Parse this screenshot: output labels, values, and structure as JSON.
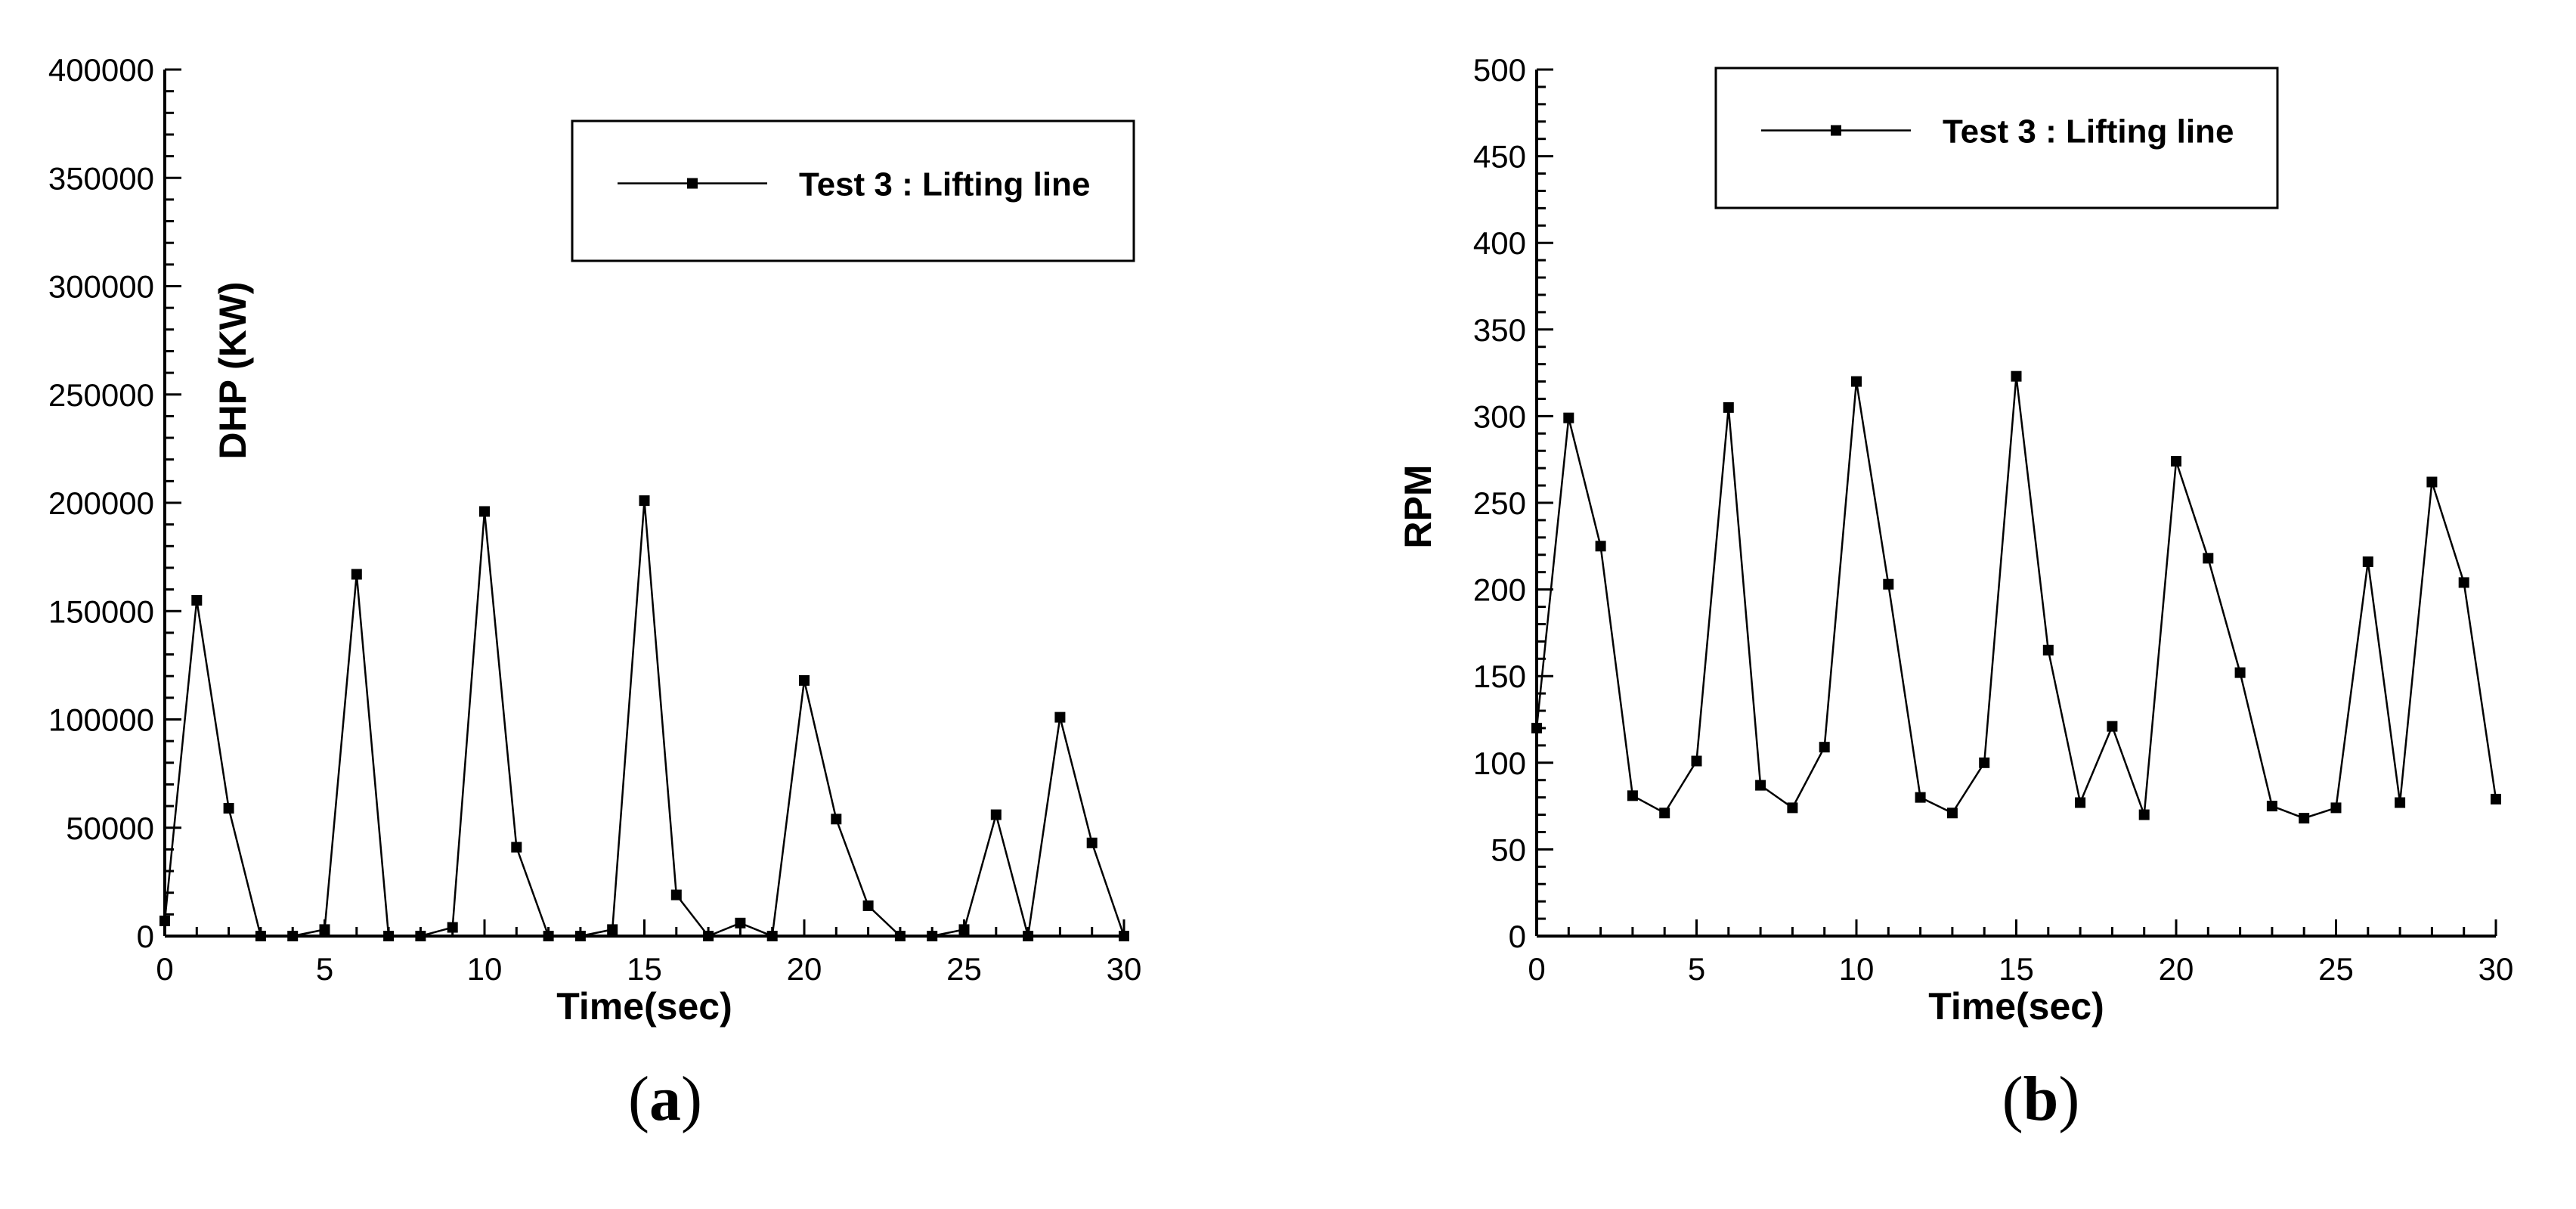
{
  "chart_data": [
    {
      "type": "line",
      "panel_label": "a",
      "xlabel": "Time(sec)",
      "ylabel": "DHP (KW)",
      "xlim": [
        0,
        30
      ],
      "ylim": [
        0,
        400000
      ],
      "xticks": [
        "0",
        "5",
        "10",
        "15",
        "20",
        "25",
        "30"
      ],
      "yticks": [
        "0",
        "50000",
        "100000",
        "150000",
        "200000",
        "250000",
        "300000",
        "350000",
        "400000"
      ],
      "grid": false,
      "legend_position": "top-right",
      "series": [
        {
          "name": "Test 3 : Lifting line",
          "marker": "square",
          "color": "#000000",
          "x": [
            0,
            1,
            2,
            3,
            4,
            5,
            6,
            7,
            8,
            9,
            10,
            11,
            12,
            13,
            14,
            15,
            16,
            17,
            18,
            19,
            20,
            21,
            22,
            23,
            24,
            25,
            26,
            27,
            28,
            29,
            30
          ],
          "y": [
            7000,
            155000,
            59000,
            0,
            0,
            3000,
            167000,
            0,
            0,
            4000,
            196000,
            41000,
            0,
            0,
            3000,
            201000,
            19000,
            0,
            6000,
            0,
            118000,
            54000,
            14000,
            0,
            0,
            3000,
            56000,
            0,
            101000,
            43000,
            0
          ]
        }
      ]
    },
    {
      "type": "line",
      "panel_label": "b",
      "xlabel": "Time(sec)",
      "ylabel": "RPM",
      "xlim": [
        0,
        30
      ],
      "ylim": [
        0,
        500
      ],
      "xticks": [
        "0",
        "5",
        "10",
        "15",
        "20",
        "25",
        "30"
      ],
      "yticks": [
        "0",
        "50",
        "100",
        "150",
        "200",
        "250",
        "300",
        "350",
        "400",
        "450",
        "500"
      ],
      "grid": false,
      "legend_position": "top-right",
      "series": [
        {
          "name": "Test 3 : Lifting line",
          "marker": "square",
          "color": "#000000",
          "x": [
            0,
            1,
            2,
            3,
            4,
            5,
            6,
            7,
            8,
            9,
            10,
            11,
            12,
            13,
            14,
            15,
            16,
            17,
            18,
            19,
            20,
            21,
            22,
            23,
            24,
            25,
            26,
            27,
            28,
            29,
            30
          ],
          "y": [
            120,
            299,
            225,
            81,
            71,
            101,
            305,
            87,
            74,
            109,
            320,
            203,
            80,
            71,
            100,
            323,
            165,
            77,
            121,
            70,
            274,
            218,
            152,
            75,
            68,
            74,
            216,
            77,
            262,
            204,
            79
          ]
        }
      ]
    }
  ]
}
